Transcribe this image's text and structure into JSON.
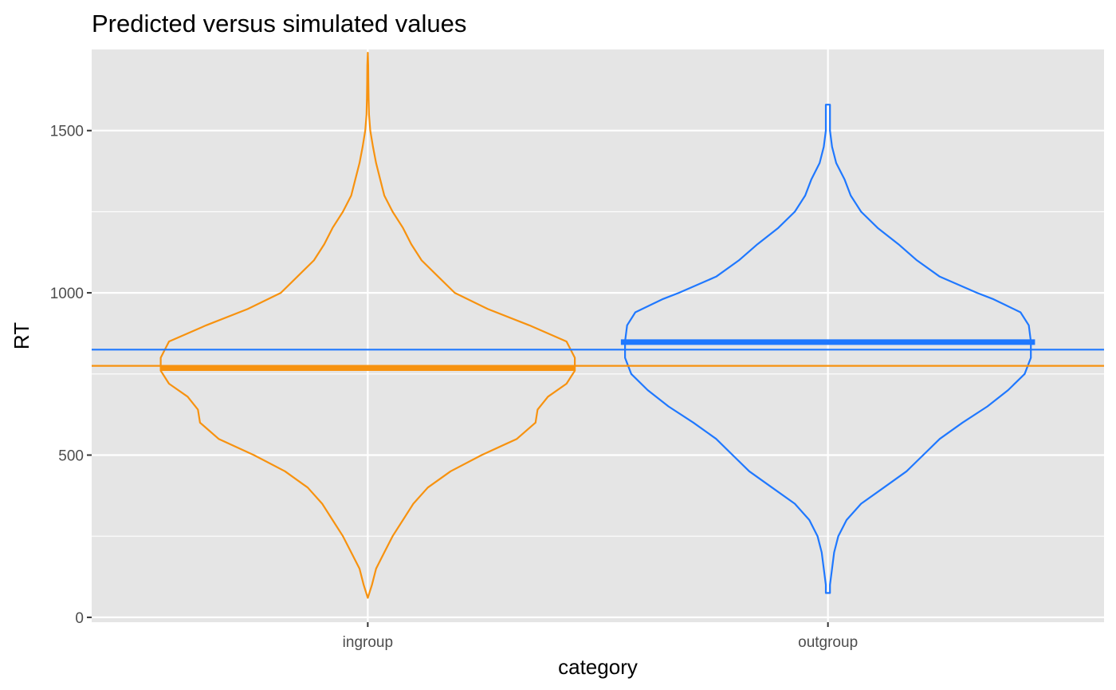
{
  "chart_data": {
    "type": "violin",
    "title": "Predicted versus simulated values",
    "xlabel": "category",
    "ylabel": "RT",
    "categories": [
      "ingroup",
      "outgroup"
    ],
    "ylim": [
      -15,
      1750
    ],
    "yticks": [
      0,
      500,
      1000,
      1500
    ],
    "ytick_labels": [
      "0",
      "500",
      "1000",
      "1500"
    ],
    "grid": true,
    "legend": "none",
    "colors": {
      "ingroup": "#F7920F",
      "outgroup": "#1F78FF",
      "panel": "#E5E5E5",
      "grid": "#FFFFFF"
    },
    "series": [
      {
        "category": "ingroup",
        "color": "#F7920F",
        "predicted_mean": 768,
        "overall_mean_line": 775,
        "min": 60,
        "max": 1740,
        "density_profile": [
          [
            60,
            0.0
          ],
          [
            100,
            0.02
          ],
          [
            150,
            0.04
          ],
          [
            200,
            0.08
          ],
          [
            250,
            0.12
          ],
          [
            300,
            0.17
          ],
          [
            350,
            0.22
          ],
          [
            400,
            0.29
          ],
          [
            450,
            0.4
          ],
          [
            500,
            0.55
          ],
          [
            550,
            0.72
          ],
          [
            600,
            0.81
          ],
          [
            640,
            0.82
          ],
          [
            680,
            0.87
          ],
          [
            720,
            0.96
          ],
          [
            760,
            1.0
          ],
          [
            800,
            1.0
          ],
          [
            850,
            0.96
          ],
          [
            900,
            0.78
          ],
          [
            950,
            0.58
          ],
          [
            1000,
            0.42
          ],
          [
            1050,
            0.34
          ],
          [
            1100,
            0.26
          ],
          [
            1150,
            0.21
          ],
          [
            1200,
            0.17
          ],
          [
            1250,
            0.12
          ],
          [
            1300,
            0.08
          ],
          [
            1350,
            0.06
          ],
          [
            1400,
            0.04
          ],
          [
            1450,
            0.025
          ],
          [
            1500,
            0.012
          ],
          [
            1550,
            0.006
          ],
          [
            1600,
            0.004
          ],
          [
            1650,
            0.003
          ],
          [
            1700,
            0.002
          ],
          [
            1740,
            0.0
          ]
        ]
      },
      {
        "category": "outgroup",
        "color": "#1F78FF",
        "predicted_mean": 848,
        "overall_mean_line": 825,
        "min": 75,
        "max": 1580,
        "density_profile": [
          [
            75,
            0.01
          ],
          [
            100,
            0.01
          ],
          [
            150,
            0.02
          ],
          [
            200,
            0.03
          ],
          [
            250,
            0.05
          ],
          [
            300,
            0.09
          ],
          [
            350,
            0.16
          ],
          [
            400,
            0.27
          ],
          [
            450,
            0.38
          ],
          [
            500,
            0.46
          ],
          [
            550,
            0.54
          ],
          [
            600,
            0.65
          ],
          [
            650,
            0.77
          ],
          [
            700,
            0.87
          ],
          [
            750,
            0.95
          ],
          [
            800,
            0.98
          ],
          [
            850,
            0.98
          ],
          [
            900,
            0.97
          ],
          [
            940,
            0.93
          ],
          [
            980,
            0.8
          ],
          [
            1000,
            0.72
          ],
          [
            1050,
            0.54
          ],
          [
            1100,
            0.43
          ],
          [
            1150,
            0.34
          ],
          [
            1200,
            0.24
          ],
          [
            1250,
            0.16
          ],
          [
            1300,
            0.11
          ],
          [
            1350,
            0.08
          ],
          [
            1400,
            0.04
          ],
          [
            1450,
            0.02
          ],
          [
            1500,
            0.01
          ],
          [
            1550,
            0.01
          ],
          [
            1580,
            0.01
          ]
        ]
      }
    ]
  }
}
